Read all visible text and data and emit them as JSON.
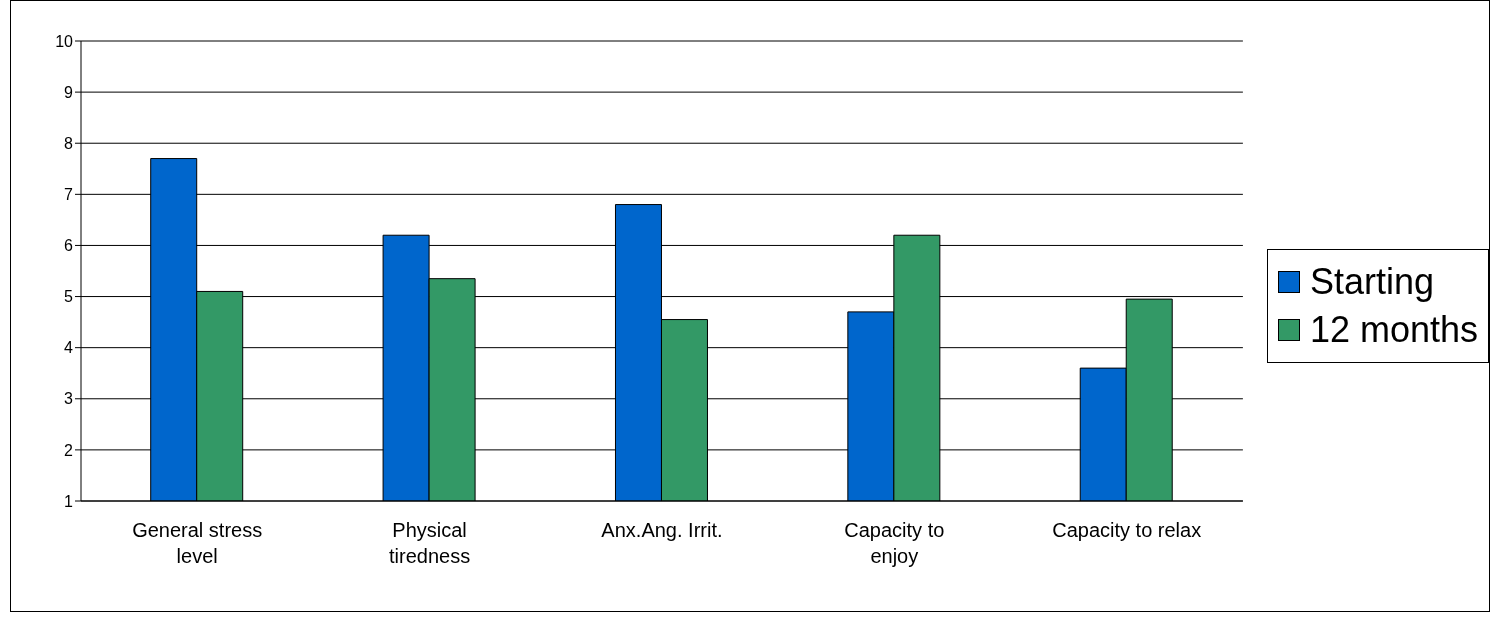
{
  "chart_data": {
    "type": "bar",
    "categories": [
      "General stress level",
      "Physical tiredness",
      "Anx.Ang. Irrit.",
      "Capacity to enjoy",
      "Capacity to relax"
    ],
    "series": [
      {
        "name": "Starting",
        "color": "#0066cc",
        "values": [
          7.7,
          6.2,
          6.8,
          4.7,
          3.6
        ]
      },
      {
        "name": "12 months",
        "color": "#339966",
        "values": [
          5.1,
          5.35,
          4.55,
          6.2,
          4.95
        ]
      }
    ],
    "ylim": [
      1,
      10
    ],
    "yticks": [
      1,
      2,
      3,
      4,
      5,
      6,
      7,
      8,
      9,
      10
    ],
    "grid": "y",
    "legend": "right"
  }
}
